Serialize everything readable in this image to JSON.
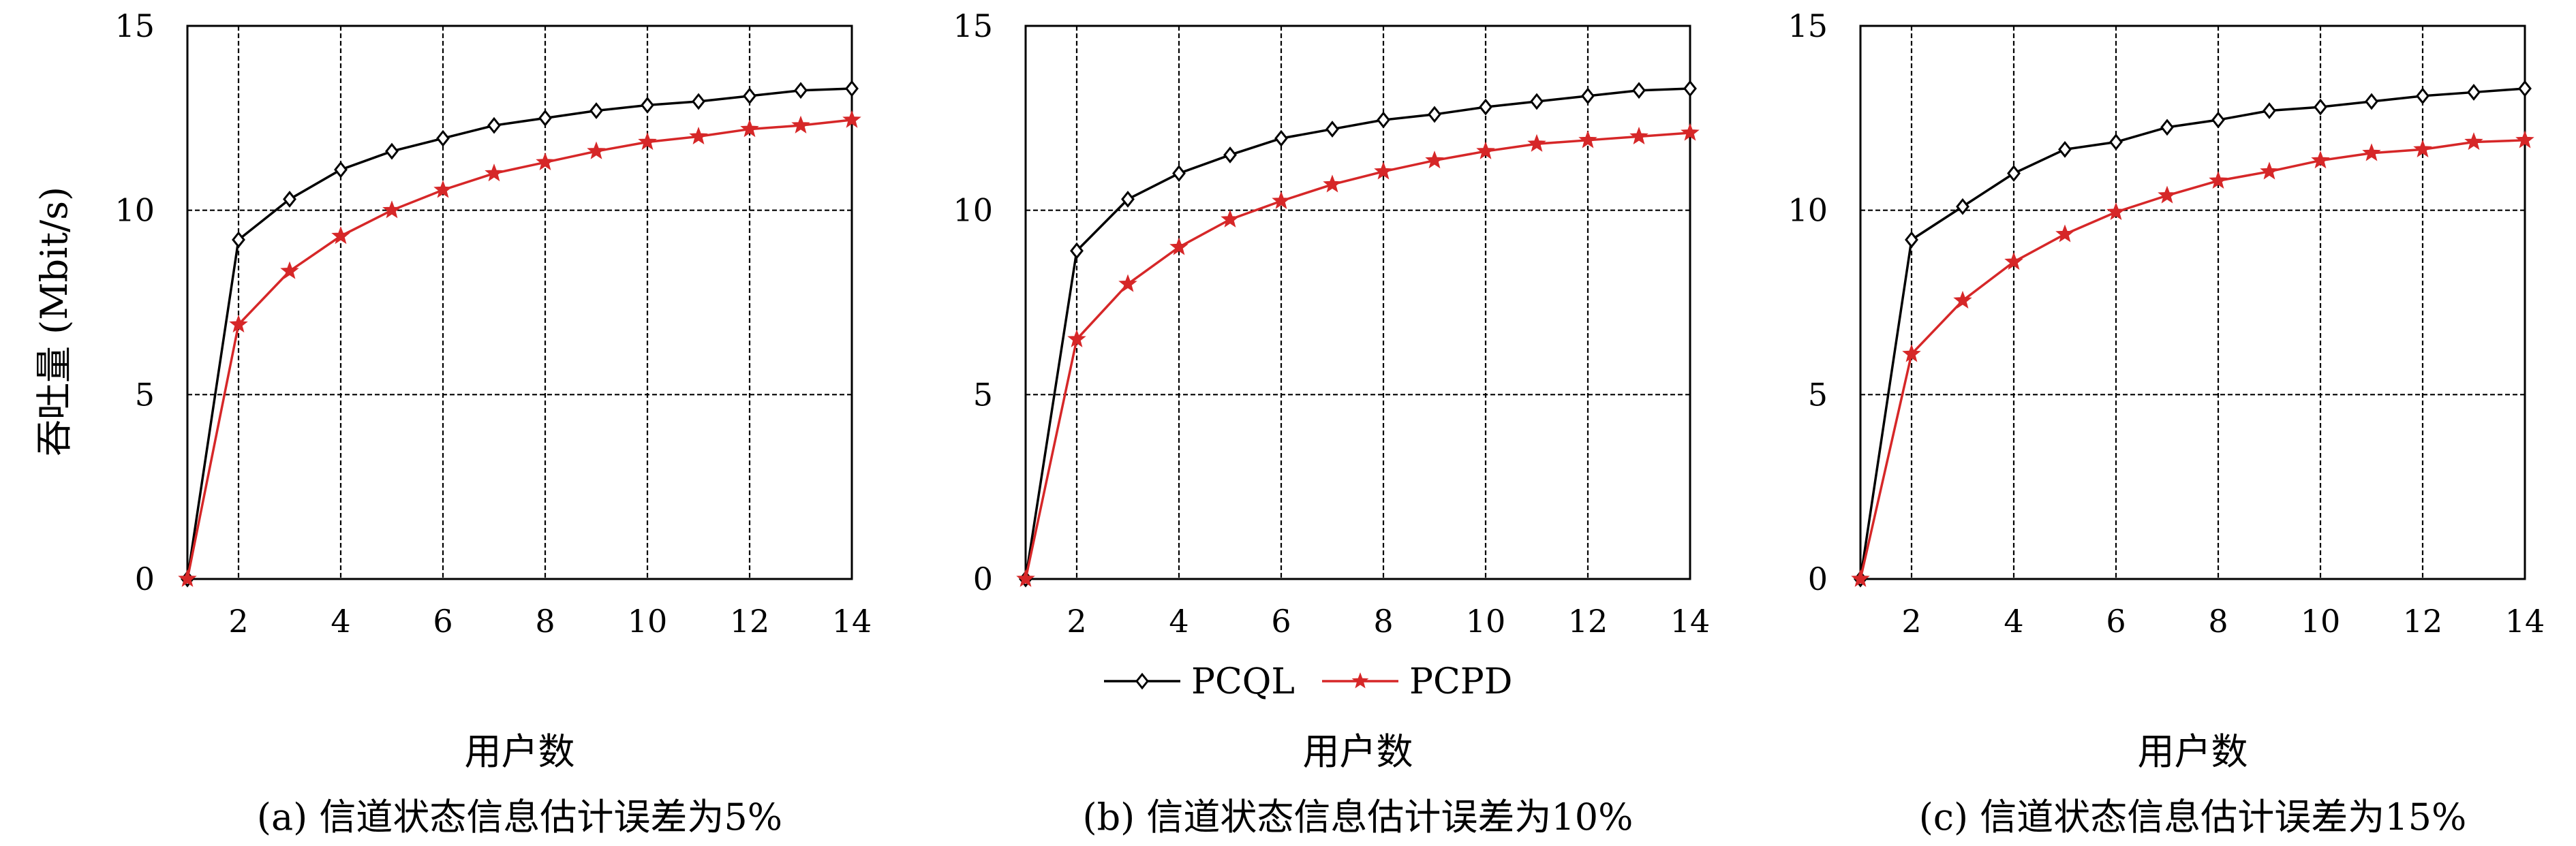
{
  "figure": {
    "ylabel": "吞吐量 (Mbit/s)",
    "legend": [
      {
        "name": "PCQL",
        "color": "#000000",
        "marker": "diamond"
      },
      {
        "name": "PCPD",
        "color": "#d62728",
        "marker": "star"
      }
    ]
  },
  "chart_data": [
    {
      "type": "line",
      "caption": "(a) 信道状态信息估计误差为5%",
      "xlabel": "用户数",
      "ylabel": "吞吐量 (Mbit/s)",
      "xlim": [
        1,
        14
      ],
      "ylim": [
        0,
        15
      ],
      "xticks": [
        2,
        4,
        6,
        8,
        10,
        12,
        14
      ],
      "yticks": [
        0,
        5,
        10,
        15
      ],
      "grid": true,
      "x": [
        1,
        2,
        3,
        4,
        5,
        6,
        7,
        8,
        9,
        10,
        11,
        12,
        13,
        14
      ],
      "series": [
        {
          "name": "PCQL",
          "color": "#000000",
          "marker": "diamond",
          "values": [
            0,
            9.2,
            10.3,
            11.1,
            11.6,
            11.95,
            12.3,
            12.5,
            12.7,
            12.85,
            12.95,
            13.1,
            13.25,
            13.3
          ]
        },
        {
          "name": "PCPD",
          "color": "#d62728",
          "marker": "star",
          "values": [
            0,
            6.9,
            8.35,
            9.3,
            10.0,
            10.55,
            11.0,
            11.3,
            11.6,
            11.85,
            12.0,
            12.2,
            12.3,
            12.45
          ]
        }
      ]
    },
    {
      "type": "line",
      "caption": "(b) 信道状态信息估计误差为10%",
      "xlabel": "用户数",
      "ylabel": "",
      "xlim": [
        1,
        14
      ],
      "ylim": [
        0,
        15
      ],
      "xticks": [
        2,
        4,
        6,
        8,
        10,
        12,
        14
      ],
      "yticks": [
        0,
        5,
        10,
        15
      ],
      "grid": true,
      "x": [
        1,
        2,
        3,
        4,
        5,
        6,
        7,
        8,
        9,
        10,
        11,
        12,
        13,
        14
      ],
      "series": [
        {
          "name": "PCQL",
          "color": "#000000",
          "marker": "diamond",
          "values": [
            0,
            8.9,
            10.3,
            11.0,
            11.5,
            11.95,
            12.2,
            12.45,
            12.6,
            12.8,
            12.95,
            13.1,
            13.25,
            13.3
          ]
        },
        {
          "name": "PCPD",
          "color": "#d62728",
          "marker": "star",
          "values": [
            0,
            6.5,
            8.0,
            9.0,
            9.75,
            10.25,
            10.7,
            11.05,
            11.35,
            11.6,
            11.8,
            11.9,
            12.0,
            12.1
          ]
        }
      ]
    },
    {
      "type": "line",
      "caption": "(c) 信道状态信息估计误差为15%",
      "xlabel": "用户数",
      "ylabel": "",
      "xlim": [
        1,
        14
      ],
      "ylim": [
        0,
        15
      ],
      "xticks": [
        2,
        4,
        6,
        8,
        10,
        12,
        14
      ],
      "yticks": [
        0,
        5,
        10,
        15
      ],
      "grid": true,
      "x": [
        1,
        2,
        3,
        4,
        5,
        6,
        7,
        8,
        9,
        10,
        11,
        12,
        13,
        14
      ],
      "series": [
        {
          "name": "PCQL",
          "color": "#000000",
          "marker": "diamond",
          "values": [
            0,
            9.2,
            10.1,
            11.0,
            11.65,
            11.85,
            12.25,
            12.45,
            12.7,
            12.8,
            12.95,
            13.1,
            13.2,
            13.3
          ]
        },
        {
          "name": "PCPD",
          "color": "#d62728",
          "marker": "star",
          "values": [
            0,
            6.1,
            7.55,
            8.6,
            9.35,
            9.95,
            10.4,
            10.8,
            11.05,
            11.35,
            11.55,
            11.65,
            11.85,
            11.9
          ]
        }
      ]
    }
  ]
}
